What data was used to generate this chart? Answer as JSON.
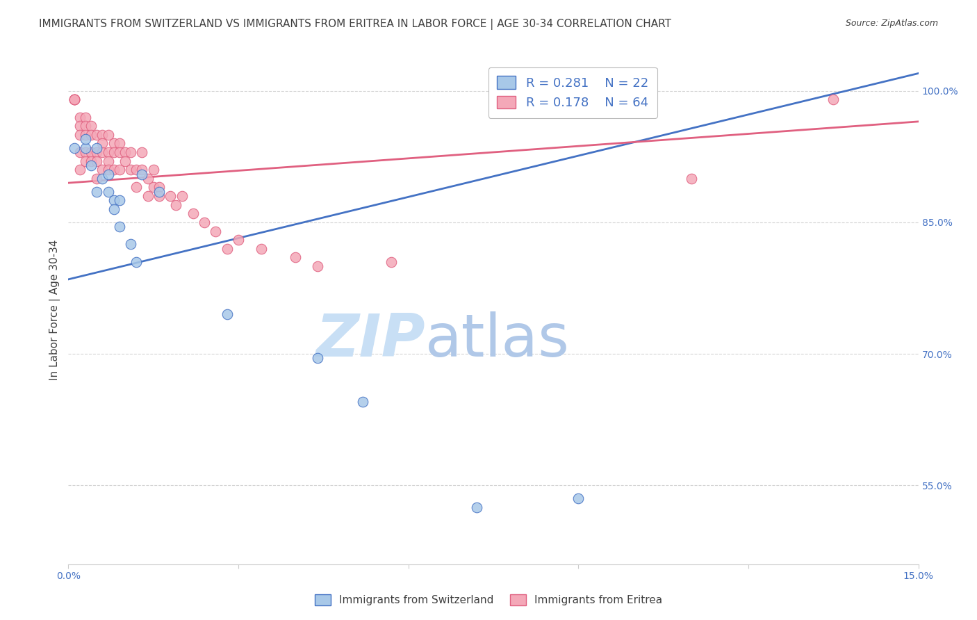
{
  "title": "IMMIGRANTS FROM SWITZERLAND VS IMMIGRANTS FROM ERITREA IN LABOR FORCE | AGE 30-34 CORRELATION CHART",
  "source": "Source: ZipAtlas.com",
  "ylabel": "In Labor Force | Age 30-34",
  "xlim": [
    0.0,
    0.15
  ],
  "ylim": [
    0.46,
    1.04
  ],
  "xticks": [
    0.0,
    0.03,
    0.06,
    0.09,
    0.12,
    0.15
  ],
  "xticklabels": [
    "0.0%",
    "",
    "",
    "",
    "",
    "15.0%"
  ],
  "yticks_right": [
    0.55,
    0.7,
    0.85,
    1.0
  ],
  "ytick_labels_right": [
    "55.0%",
    "70.0%",
    "85.0%",
    "100.0%"
  ],
  "legend_label1": "Immigrants from Switzerland",
  "legend_label2": "Immigrants from Eritrea",
  "color_swiss": "#a8c8e8",
  "color_eritrea": "#f4a8b8",
  "color_swiss_line": "#4472c4",
  "color_eritrea_line": "#e06080",
  "color_text_blue": "#4472c4",
  "color_text_dark": "#404040",
  "watermark_zip": "ZIP",
  "watermark_atlas": "atlas",
  "watermark_color_zip": "#c8dff5",
  "watermark_color_atlas": "#b0c8e8",
  "grid_color": "#d0d0d0",
  "background_color": "#ffffff",
  "title_fontsize": 11,
  "axis_label_fontsize": 11,
  "tick_fontsize": 10,
  "legend_fontsize": 13,
  "swiss_trendline_x": [
    0.0,
    0.15
  ],
  "swiss_trendline_y": [
    0.785,
    1.02
  ],
  "eritrea_trendline_x": [
    0.0,
    0.15
  ],
  "eritrea_trendline_y": [
    0.895,
    0.965
  ],
  "swiss_x": [
    0.001,
    0.003,
    0.003,
    0.004,
    0.005,
    0.005,
    0.006,
    0.007,
    0.007,
    0.008,
    0.008,
    0.009,
    0.009,
    0.011,
    0.012,
    0.013,
    0.016,
    0.028,
    0.044,
    0.052,
    0.072,
    0.09
  ],
  "swiss_y": [
    0.935,
    0.935,
    0.945,
    0.915,
    0.885,
    0.935,
    0.9,
    0.905,
    0.885,
    0.875,
    0.865,
    0.875,
    0.845,
    0.825,
    0.805,
    0.905,
    0.885,
    0.745,
    0.695,
    0.645,
    0.525,
    0.535
  ],
  "eritrea_x": [
    0.001,
    0.001,
    0.001,
    0.001,
    0.002,
    0.002,
    0.002,
    0.002,
    0.002,
    0.003,
    0.003,
    0.003,
    0.003,
    0.003,
    0.004,
    0.004,
    0.004,
    0.004,
    0.005,
    0.005,
    0.005,
    0.005,
    0.006,
    0.006,
    0.006,
    0.006,
    0.007,
    0.007,
    0.007,
    0.007,
    0.008,
    0.008,
    0.008,
    0.009,
    0.009,
    0.009,
    0.01,
    0.01,
    0.011,
    0.011,
    0.012,
    0.012,
    0.013,
    0.013,
    0.014,
    0.014,
    0.015,
    0.015,
    0.016,
    0.016,
    0.018,
    0.019,
    0.02,
    0.022,
    0.024,
    0.026,
    0.028,
    0.03,
    0.034,
    0.04,
    0.044,
    0.057,
    0.11,
    0.135
  ],
  "eritrea_y": [
    0.99,
    0.99,
    0.99,
    0.99,
    0.97,
    0.96,
    0.95,
    0.93,
    0.91,
    0.97,
    0.96,
    0.95,
    0.93,
    0.92,
    0.96,
    0.95,
    0.93,
    0.92,
    0.95,
    0.93,
    0.92,
    0.9,
    0.95,
    0.94,
    0.93,
    0.91,
    0.95,
    0.93,
    0.92,
    0.91,
    0.94,
    0.93,
    0.91,
    0.94,
    0.93,
    0.91,
    0.93,
    0.92,
    0.93,
    0.91,
    0.91,
    0.89,
    0.93,
    0.91,
    0.9,
    0.88,
    0.91,
    0.89,
    0.89,
    0.88,
    0.88,
    0.87,
    0.88,
    0.86,
    0.85,
    0.84,
    0.82,
    0.83,
    0.82,
    0.81,
    0.8,
    0.805,
    0.9,
    0.99
  ]
}
